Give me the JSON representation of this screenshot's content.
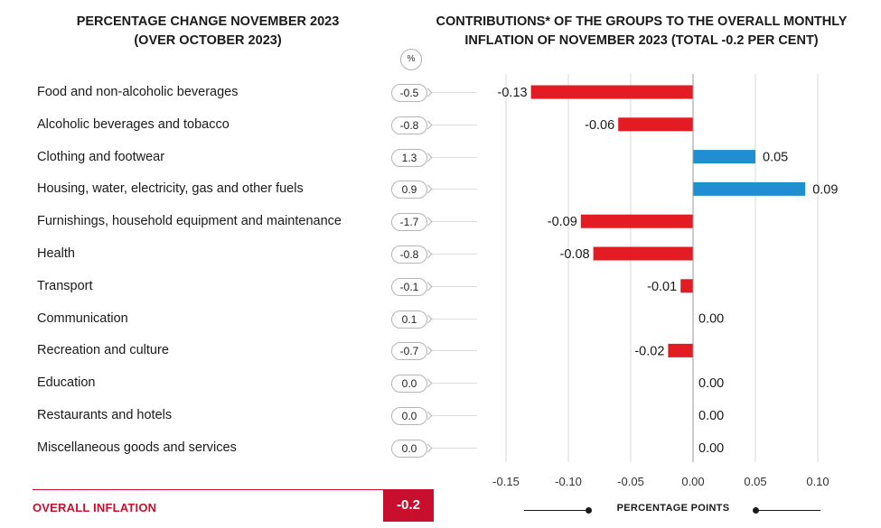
{
  "left_panel": {
    "title_line1": "PERCENTAGE CHANGE NOVEMBER 2023",
    "title_line2": "(OVER OCTOBER 2023)",
    "unit": "%"
  },
  "right_panel": {
    "title_line1": "CONTRIBUTIONS* OF THE GROUPS TO THE OVERALL MONTHLY",
    "title_line2": "INFLATION OF NOVEMBER 2023 (TOTAL -0.2 PER CENT)"
  },
  "overall": {
    "label": "OVERALL INFLATION",
    "value": "-0.2"
  },
  "colors": {
    "negative": "#e31b23",
    "positive": "#1f8fd0",
    "overall": "#c8102e"
  },
  "chart_data": {
    "type": "bar",
    "orientation": "horizontal",
    "categories": [
      "Food and non-alcoholic beverages",
      "Alcoholic beverages and tobacco",
      "Clothing and footwear",
      "Housing, water, electricity, gas and other fuels",
      "Furnishings, household equipment and maintenance",
      "Health",
      "Transport",
      "Communication",
      "Recreation and culture",
      "Education",
      "Restaurants and hotels",
      "Miscellaneous goods and services"
    ],
    "percentage_change": [
      "-0.5",
      "-0.8",
      "1.3",
      "0.9",
      "-1.7",
      "-0.8",
      "-0.1",
      "0.1",
      "-0.7",
      "0.0",
      "0.0",
      "0.0"
    ],
    "values": [
      -0.13,
      -0.06,
      0.05,
      0.09,
      -0.09,
      -0.08,
      -0.01,
      0.0,
      -0.02,
      0.0,
      0.0,
      0.0
    ],
    "value_labels": [
      "-0.13",
      "-0.06",
      "0.05",
      "0.09",
      "-0.09",
      "-0.08",
      "-0.01",
      "0.00",
      "-0.02",
      "0.00",
      "0.00",
      "0.00"
    ],
    "xlabel": "PERCENTAGE POINTS",
    "xlim": [
      -0.15,
      0.1
    ],
    "xticks": [
      -0.15,
      -0.1,
      -0.05,
      0.0,
      0.05,
      0.1
    ],
    "xtick_labels": [
      "-0.15",
      "-0.10",
      "-0.05",
      "0.00",
      "0.05",
      "0.10"
    ],
    "grid": true
  }
}
